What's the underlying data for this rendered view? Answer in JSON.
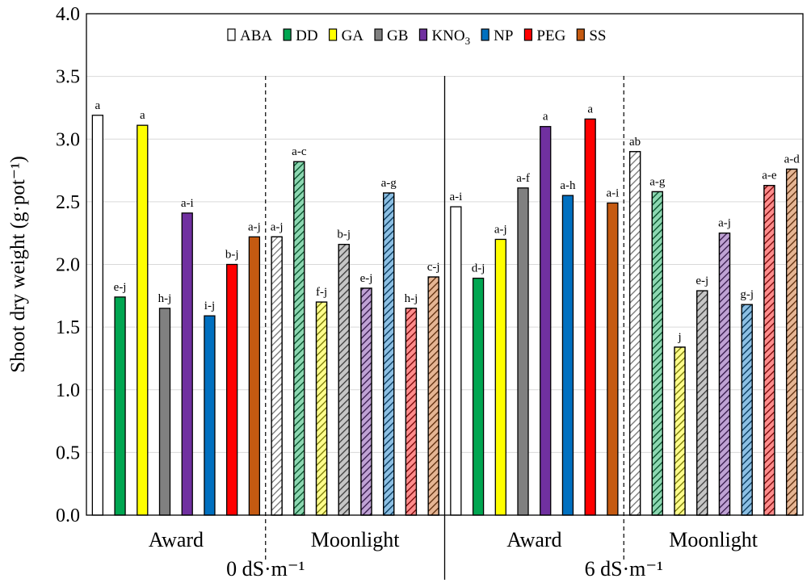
{
  "chart_data": {
    "type": "bar",
    "ylabel": "Shoot dry weight (g·pot⁻¹)",
    "ylim": [
      0,
      4.0
    ],
    "yticks": [
      "0.0",
      "0.5",
      "1.0",
      "1.5",
      "2.0",
      "2.5",
      "3.0",
      "3.5",
      "4.0"
    ],
    "grid": "horizontal",
    "legend_position": "top",
    "legend": [
      {
        "key": "ABA",
        "label": "ABA",
        "color": "#ffffff"
      },
      {
        "key": "DD",
        "label": "DD",
        "color": "#00a651"
      },
      {
        "key": "GA",
        "label": "GA",
        "color": "#ffff00"
      },
      {
        "key": "GB",
        "label": "GB",
        "color": "#808080"
      },
      {
        "key": "KNO3",
        "label": "KNO",
        "sub": "3",
        "color": "#7030a0"
      },
      {
        "key": "NP",
        "label": "NP",
        "color": "#0070c0"
      },
      {
        "key": "PEG",
        "label": "PEG",
        "color": "#ff0000"
      },
      {
        "key": "SS",
        "label": "SS",
        "color": "#c55a11"
      }
    ],
    "series_order": [
      "ABA",
      "DD",
      "GA",
      "GB",
      "KNO3",
      "NP",
      "PEG",
      "SS"
    ],
    "groups": [
      {
        "cultivar": "Award",
        "salinity": "0 dS·m⁻¹",
        "hatched": false,
        "values": [
          3.19,
          1.74,
          3.11,
          1.65,
          2.41,
          1.59,
          2.0,
          2.22
        ],
        "letters": [
          "a",
          "e-j",
          "a",
          "h-j",
          "a-i",
          "i-j",
          "b-j",
          "a-j"
        ]
      },
      {
        "cultivar": "Moonlight",
        "salinity": "0 dS·m⁻¹",
        "hatched": true,
        "values": [
          2.22,
          2.82,
          1.7,
          2.16,
          1.81,
          2.57,
          1.65,
          1.9
        ],
        "letters": [
          "a-j",
          "a-c",
          "f-j",
          "b-j",
          "e-j",
          "a-g",
          "h-j",
          "c-j"
        ]
      },
      {
        "cultivar": "Award",
        "salinity": "6 dS·m⁻¹",
        "hatched": false,
        "values": [
          2.46,
          1.89,
          2.2,
          2.61,
          3.1,
          2.55,
          3.16,
          2.49
        ],
        "letters": [
          "a-i",
          "d-j",
          "a-j",
          "a-f",
          "a",
          "a-h",
          "a",
          "a-i"
        ]
      },
      {
        "cultivar": "Moonlight",
        "salinity": "6 dS·m⁻¹",
        "hatched": true,
        "values": [
          2.9,
          2.58,
          1.34,
          1.79,
          2.25,
          1.68,
          2.63,
          2.76
        ],
        "letters": [
          "ab",
          "a-g",
          "j",
          "e-j",
          "a-j",
          "g-j",
          "a-e",
          "a-d"
        ]
      }
    ],
    "salinity_labels": [
      "0 dS·m⁻¹",
      "6 dS·m⁻¹"
    ]
  }
}
